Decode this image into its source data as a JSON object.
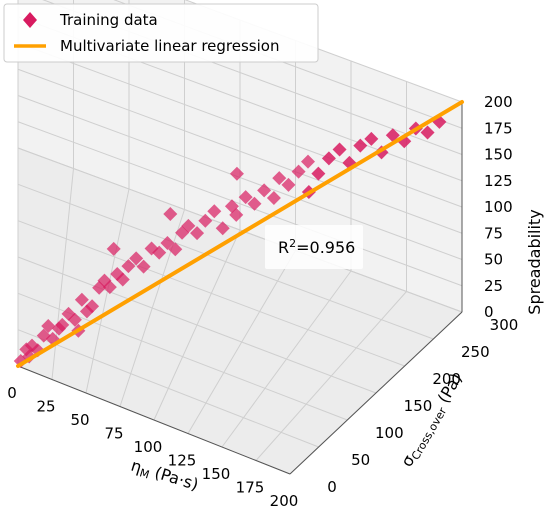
{
  "chart_data": {
    "type": "scatter",
    "dimensions": 3,
    "x_axis": {
      "label": "ηM (Pa·s)",
      "label_main": "η",
      "label_sub": "M",
      "label_rest": " (Pa·s)",
      "range": [
        0,
        200
      ],
      "ticks": [
        0,
        25,
        50,
        75,
        100,
        125,
        150,
        175,
        200
      ]
    },
    "y_axis": {
      "label": "σCross,over (Pa)",
      "label_main": "σ",
      "label_sub": "Cross,over",
      "label_rest": " (Pa)",
      "range": [
        0,
        300
      ],
      "ticks": [
        0,
        50,
        100,
        150,
        200,
        250,
        300
      ]
    },
    "z_axis": {
      "label": "Spreadability",
      "range": [
        0,
        200
      ],
      "ticks": [
        0,
        25,
        50,
        75,
        100,
        125,
        150,
        175,
        200
      ]
    },
    "grid": true,
    "legend": {
      "placement": "top-left",
      "entries": [
        {
          "label": "Training data",
          "marker": "diamond",
          "color": "#d81b60"
        },
        {
          "label": "Multivariate linear regression",
          "marker": "line",
          "color": "#ffa000"
        }
      ]
    },
    "annotation": {
      "text_base": "R",
      "text_sup": "2",
      "text_rest": "=0.956"
    },
    "series": [
      {
        "name": "Training data",
        "color": "#d81b60",
        "points": [
          [
            2,
            4,
            3
          ],
          [
            6,
            10,
            12
          ],
          [
            8,
            12,
            5
          ],
          [
            10,
            14,
            15
          ],
          [
            14,
            18,
            10
          ],
          [
            18,
            24,
            22
          ],
          [
            21,
            28,
            30
          ],
          [
            24,
            30,
            18
          ],
          [
            28,
            36,
            26
          ],
          [
            30,
            40,
            28
          ],
          [
            34,
            44,
            38
          ],
          [
            38,
            48,
            32
          ],
          [
            42,
            56,
            48
          ],
          [
            45,
            60,
            36
          ],
          [
            48,
            64,
            40
          ],
          [
            52,
            70,
            56
          ],
          [
            55,
            74,
            62
          ],
          [
            58,
            78,
            55
          ],
          [
            62,
            84,
            66
          ],
          [
            65,
            88,
            60
          ],
          [
            68,
            92,
            72
          ],
          [
            72,
            98,
            78
          ],
          [
            76,
            102,
            70
          ],
          [
            80,
            108,
            86
          ],
          [
            84,
            112,
            82
          ],
          [
            88,
            118,
            90
          ],
          [
            92,
            122,
            84
          ],
          [
            95,
            128,
            98
          ],
          [
            98,
            132,
            104
          ],
          [
            102,
            138,
            96
          ],
          [
            106,
            142,
            108
          ],
          [
            110,
            148,
            116
          ],
          [
            114,
            152,
            100
          ],
          [
            118,
            158,
            120
          ],
          [
            120,
            160,
            112
          ],
          [
            124,
            166,
            128
          ],
          [
            128,
            170,
            122
          ],
          [
            132,
            176,
            134
          ],
          [
            136,
            182,
            126
          ],
          [
            138,
            186,
            144
          ],
          [
            142,
            190,
            138
          ],
          [
            146,
            196,
            150
          ],
          [
            150,
            200,
            160
          ],
          [
            154,
            206,
            148
          ],
          [
            158,
            212,
            162
          ],
          [
            162,
            218,
            170
          ],
          [
            166,
            222,
            158
          ],
          [
            170,
            228,
            174
          ],
          [
            174,
            234,
            180
          ],
          [
            178,
            238,
            168
          ],
          [
            182,
            244,
            184
          ],
          [
            186,
            250,
            178
          ],
          [
            190,
            256,
            190
          ],
          [
            194,
            262,
            186
          ],
          [
            198,
            268,
            196
          ],
          [
            60,
            82,
            90
          ],
          [
            90,
            116,
            120
          ],
          [
            120,
            162,
            150
          ],
          [
            40,
            52,
            20
          ],
          [
            150,
            202,
            130
          ]
        ]
      },
      {
        "name": "Multivariate linear regression",
        "color": "#ffa000",
        "line": [
          [
            0,
            0,
            0
          ],
          [
            200,
            300,
            200
          ]
        ]
      }
    ]
  }
}
